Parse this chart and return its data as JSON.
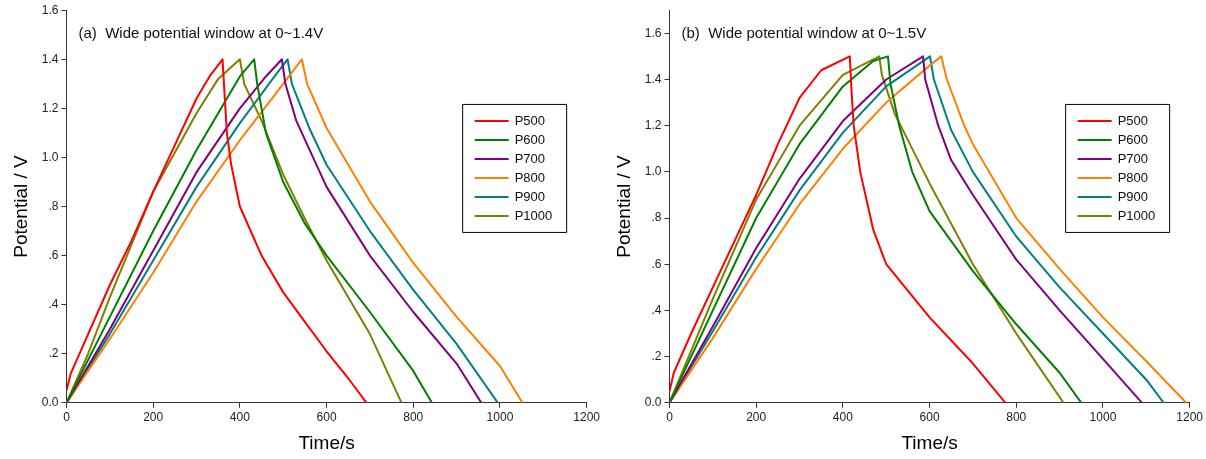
{
  "chart_data": [
    {
      "type": "line",
      "title": "(a)  Wide potential window at 0~1.4V",
      "xlabel": "Time/s",
      "ylabel": "Potential / V",
      "xlim": [
        0,
        1200
      ],
      "xticks": [
        0,
        200,
        400,
        600,
        800,
        1000,
        1200
      ],
      "ylim": [
        0,
        1.6
      ],
      "yticks": [
        {
          "value": 0,
          "label": "0.0"
        },
        {
          "value": 0.2,
          "label": ".2"
        },
        {
          "value": 0.4,
          "label": ".4"
        },
        {
          "value": 0.6,
          "label": ".6"
        },
        {
          "value": 0.8,
          "label": ".8"
        },
        {
          "value": 1.0,
          "label": "1.0"
        },
        {
          "value": 1.2,
          "label": "1.2"
        },
        {
          "value": 1.4,
          "label": "1.4"
        },
        {
          "value": 1.6,
          "label": "1.6"
        }
      ],
      "grid": false,
      "legend": "top right",
      "marker": "none",
      "line_style": "solid",
      "series": [
        {
          "name": "P500",
          "color": "#ff0000",
          "x": [
            0,
            10,
            50,
            100,
            150,
            200,
            250,
            300,
            330,
            360,
            365,
            370,
            380,
            400,
            450,
            500,
            550,
            600,
            650,
            692
          ],
          "values": [
            0.05,
            0.12,
            0.28,
            0.48,
            0.66,
            0.86,
            1.05,
            1.24,
            1.33,
            1.4,
            1.25,
            1.1,
            0.97,
            0.8,
            0.6,
            0.45,
            0.33,
            0.21,
            0.1,
            0
          ]
        },
        {
          "name": "P600",
          "color": "#008000",
          "x": [
            0,
            100,
            200,
            300,
            400,
            433,
            440,
            460,
            500,
            550,
            600,
            700,
            800,
            843
          ],
          "values": [
            0,
            0.35,
            0.7,
            1.03,
            1.33,
            1.4,
            1.3,
            1.1,
            0.9,
            0.73,
            0.6,
            0.37,
            0.13,
            0
          ]
        },
        {
          "name": "P700",
          "color": "#800080",
          "x": [
            0,
            100,
            200,
            300,
            400,
            460,
            497,
            505,
            530,
            600,
            700,
            800,
            900,
            957
          ],
          "values": [
            0,
            0.3,
            0.62,
            0.94,
            1.2,
            1.33,
            1.4,
            1.3,
            1.15,
            0.88,
            0.6,
            0.37,
            0.16,
            0
          ]
        },
        {
          "name": "P800",
          "color": "#ff8000",
          "x": [
            0,
            100,
            200,
            300,
            400,
            500,
            543,
            555,
            600,
            700,
            800,
            900,
            1000,
            1052
          ],
          "values": [
            0,
            0.26,
            0.53,
            0.82,
            1.07,
            1.3,
            1.4,
            1.3,
            1.12,
            0.82,
            0.57,
            0.35,
            0.15,
            0
          ]
        },
        {
          "name": "P900",
          "color": "#008080",
          "x": [
            0,
            100,
            200,
            300,
            400,
            480,
            510,
            520,
            560,
            600,
            700,
            800,
            900,
            995
          ],
          "values": [
            0,
            0.28,
            0.58,
            0.88,
            1.14,
            1.33,
            1.4,
            1.3,
            1.12,
            0.97,
            0.7,
            0.46,
            0.24,
            0
          ]
        },
        {
          "name": "P1000",
          "color": "#808000",
          "x": [
            0,
            50,
            100,
            200,
            300,
            350,
            400,
            410,
            450,
            500,
            550,
            600,
            700,
            773
          ],
          "values": [
            0,
            0.2,
            0.43,
            0.86,
            1.18,
            1.32,
            1.4,
            1.3,
            1.15,
            0.93,
            0.75,
            0.58,
            0.28,
            0
          ]
        }
      ]
    },
    {
      "type": "line",
      "title": "(b)  Wide potential window at 0~1.5V",
      "xlabel": "Time/s",
      "ylabel": "Potential / V",
      "xlim": [
        0,
        1200
      ],
      "xticks": [
        0,
        200,
        400,
        600,
        800,
        1000,
        1200
      ],
      "ylim": [
        0,
        1.7
      ],
      "yticks": [
        {
          "value": 0,
          "label": "0.0"
        },
        {
          "value": 0.2,
          "label": ".2"
        },
        {
          "value": 0.4,
          "label": ".4"
        },
        {
          "value": 0.6,
          "label": ".6"
        },
        {
          "value": 0.8,
          "label": ".8"
        },
        {
          "value": 1.0,
          "label": "1.0"
        },
        {
          "value": 1.2,
          "label": "1.2"
        },
        {
          "value": 1.4,
          "label": "1.4"
        },
        {
          "value": 1.6,
          "label": "1.6"
        }
      ],
      "grid": false,
      "legend": "top right",
      "marker": "none",
      "line_style": "solid",
      "series": [
        {
          "name": "P500",
          "color": "#ff0000",
          "x": [
            0,
            10,
            50,
            100,
            150,
            200,
            250,
            300,
            350,
            416,
            420,
            425,
            440,
            470,
            500,
            600,
            700,
            775
          ],
          "values": [
            0.05,
            0.13,
            0.3,
            0.5,
            0.7,
            0.9,
            1.12,
            1.32,
            1.44,
            1.5,
            1.35,
            1.2,
            1.0,
            0.75,
            0.6,
            0.37,
            0.17,
            0
          ]
        },
        {
          "name": "P600",
          "color": "#008000",
          "x": [
            0,
            100,
            200,
            300,
            400,
            470,
            504,
            510,
            530,
            560,
            600,
            700,
            800,
            900,
            950
          ],
          "values": [
            0,
            0.4,
            0.8,
            1.12,
            1.37,
            1.48,
            1.5,
            1.38,
            1.2,
            1.0,
            0.83,
            0.57,
            0.34,
            0.13,
            0
          ]
        },
        {
          "name": "P700",
          "color": "#800080",
          "x": [
            0,
            100,
            200,
            300,
            400,
            500,
            585,
            590,
            620,
            650,
            700,
            800,
            900,
            1000,
            1090
          ],
          "values": [
            0,
            0.33,
            0.67,
            0.97,
            1.22,
            1.4,
            1.5,
            1.4,
            1.2,
            1.05,
            0.9,
            0.62,
            0.4,
            0.19,
            0
          ]
        },
        {
          "name": "P800",
          "color": "#ff8000",
          "x": [
            0,
            100,
            200,
            300,
            400,
            500,
            600,
            627,
            640,
            680,
            700,
            800,
            900,
            1000,
            1100,
            1192
          ],
          "values": [
            0,
            0.28,
            0.58,
            0.86,
            1.1,
            1.3,
            1.46,
            1.5,
            1.4,
            1.2,
            1.12,
            0.8,
            0.58,
            0.37,
            0.18,
            0
          ]
        },
        {
          "name": "P900",
          "color": "#008080",
          "x": [
            0,
            100,
            200,
            300,
            400,
            500,
            601,
            610,
            650,
            700,
            800,
            900,
            1000,
            1100,
            1140
          ],
          "values": [
            0,
            0.31,
            0.63,
            0.92,
            1.17,
            1.37,
            1.5,
            1.4,
            1.18,
            1.0,
            0.72,
            0.5,
            0.3,
            0.1,
            0
          ]
        },
        {
          "name": "P1000",
          "color": "#808000",
          "x": [
            0,
            100,
            200,
            300,
            400,
            484,
            490,
            520,
            600,
            700,
            800,
            909
          ],
          "values": [
            0,
            0.45,
            0.88,
            1.2,
            1.42,
            1.5,
            1.42,
            1.25,
            0.95,
            0.6,
            0.3,
            0
          ]
        }
      ]
    }
  ]
}
